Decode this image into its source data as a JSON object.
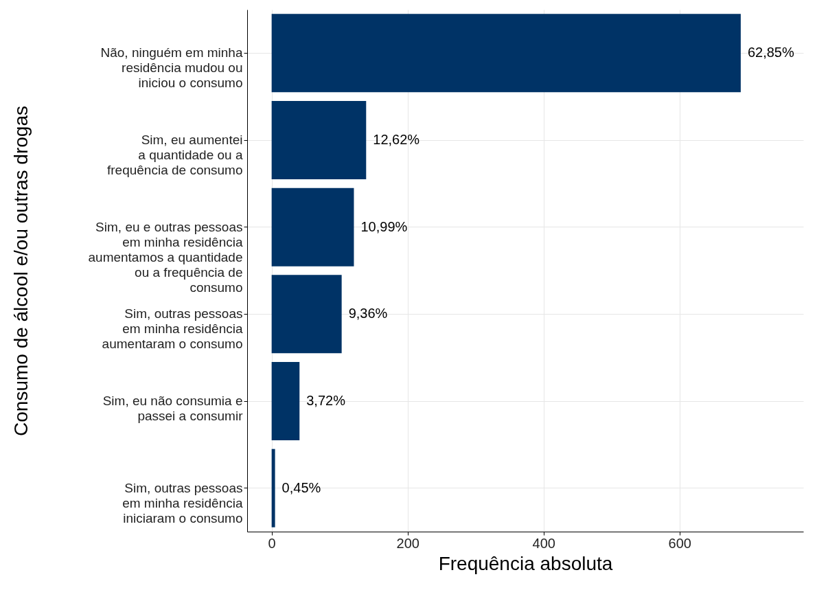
{
  "chart_data": {
    "type": "bar",
    "orientation": "horizontal",
    "categories": [
      "Não, ninguém em minha\nresidência mudou ou\niniciou o consumo",
      "Sim, eu aumentei\na quantidade ou a\nfrequência de consumo",
      "Sim, eu e outras pessoas\nem minha residência\naumentamos a quantidade\nou a frequência de\nconsumo",
      "Sim, outras pessoas\nem minha residência\naumentaram o consumo",
      "Sim, eu não consumia e\npassei a consumir",
      "Sim, outras pessoas\nem minha residência\niniciaram o consumo"
    ],
    "values": [
      690,
      139,
      121,
      103,
      41,
      5
    ],
    "annotations": [
      {
        "text": "62,85%",
        "x": 690,
        "y": "Não, ninguém em minha\nresidência mudou ou\niniciou o consumo"
      },
      {
        "text": "12,62%",
        "x": 139,
        "y": "Sim, eu aumentei\na quantidade ou a\nfrequência de consumo"
      },
      {
        "text": "10,99%",
        "x": 121,
        "y": "Sim, eu e outras pessoas\nem minha residência\naumentamos a quantidade\nou a frequência de\nconsumo"
      },
      {
        "text": "9,36%",
        "x": 103,
        "y": "Sim, outras pessoas\nem minha residência\naumentaram o consumo"
      },
      {
        "text": "3,72%",
        "x": 41,
        "y": "Sim, eu não consumia e\npassei a consumir"
      },
      {
        "text": "0,45%",
        "x": 5,
        "y": "Sim, outras pessoas\nem minha residência\niniciaram o consumo"
      }
    ],
    "color": "#003366",
    "xlabel": "Frequência absoluta",
    "ylabel": "Consumo de álcool e/ou outras drogas",
    "xlim": [
      -36,
      782
    ],
    "xticks": [
      0,
      200,
      400,
      600
    ],
    "grid": true
  }
}
